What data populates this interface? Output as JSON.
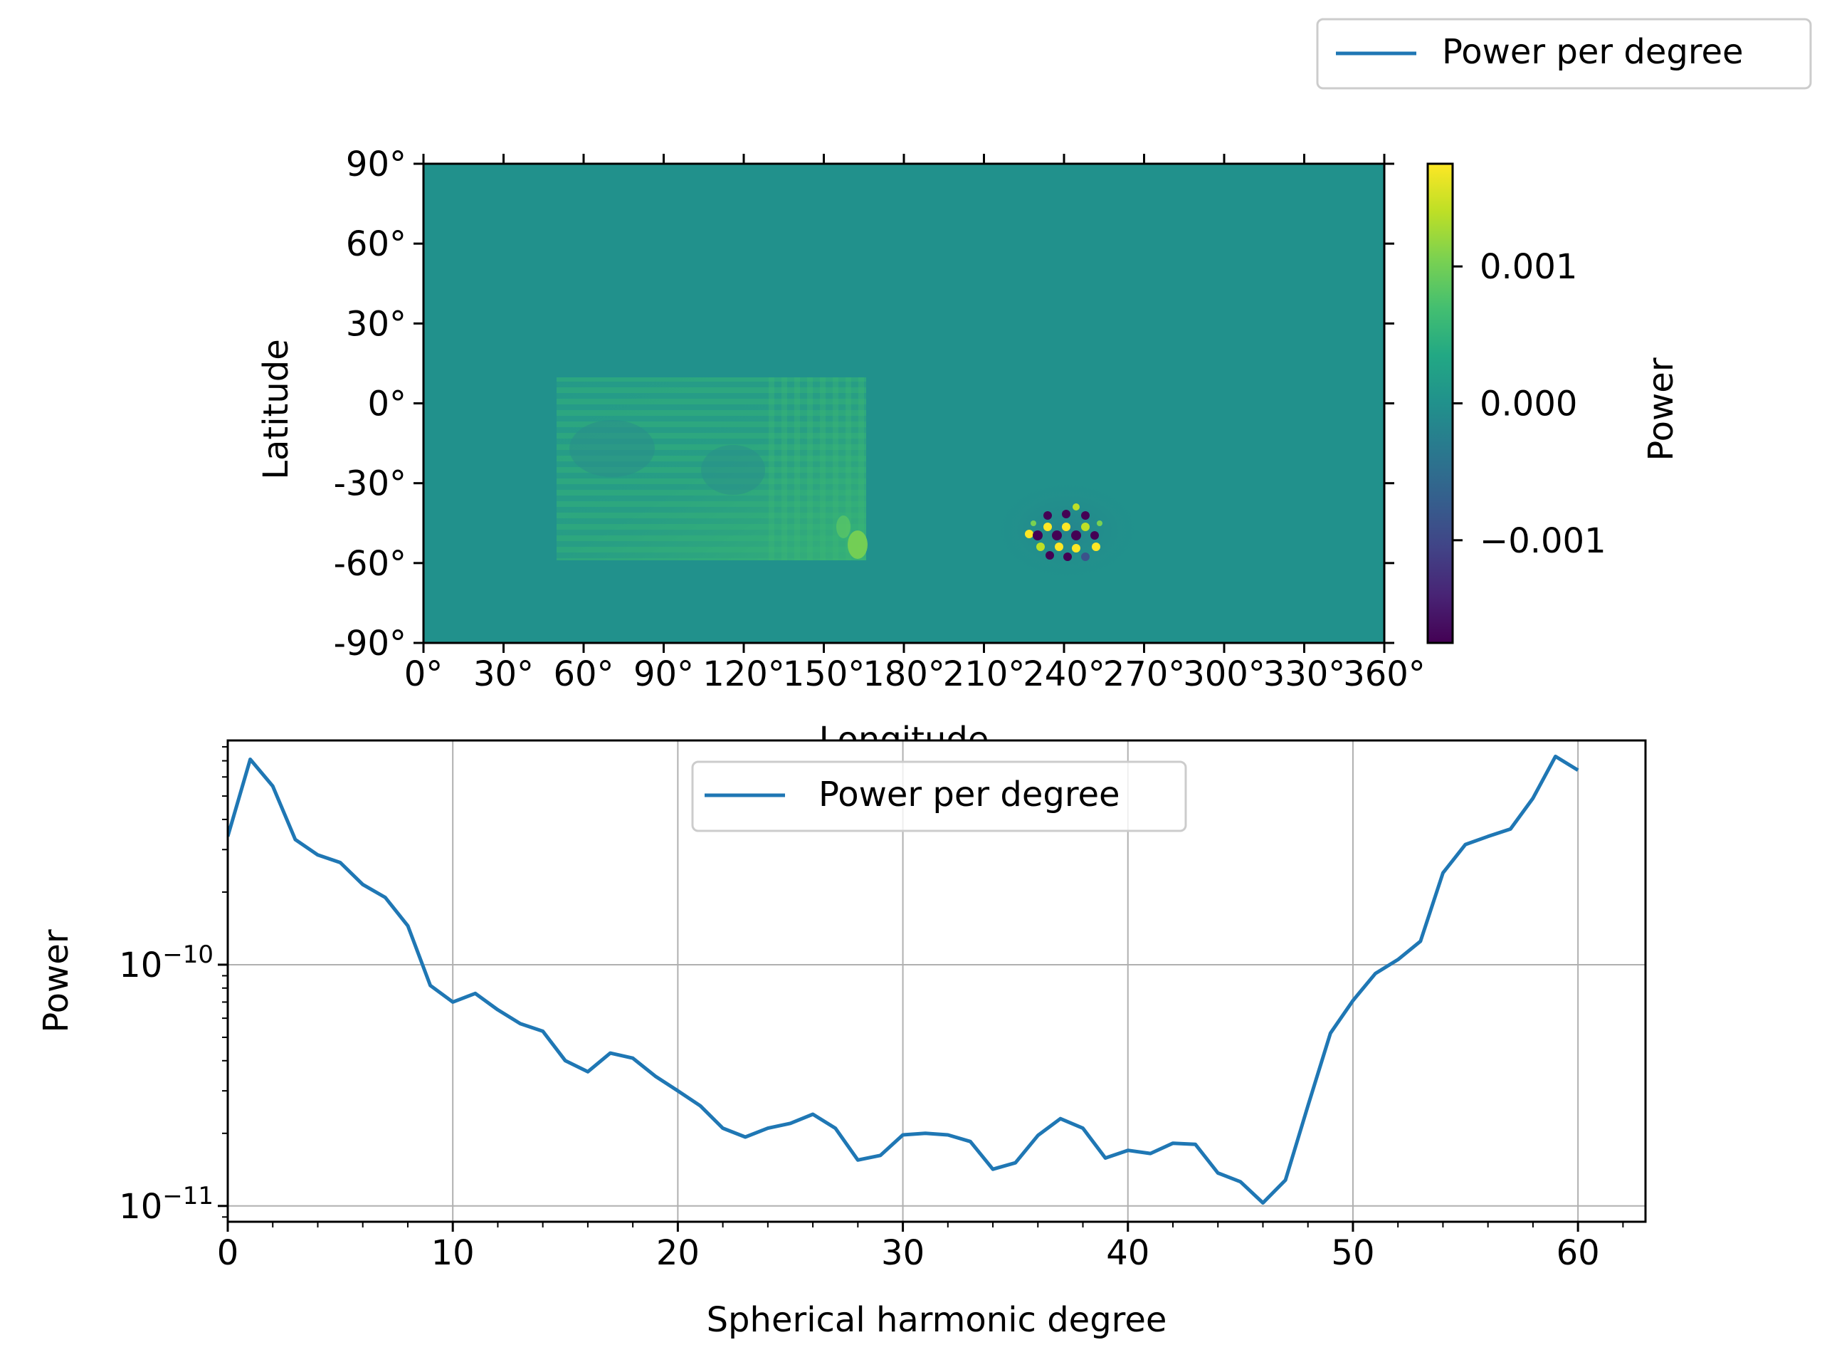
{
  "figure_legend": {
    "label": "Power per degree",
    "color": "#1f77b4"
  },
  "map": {
    "ylabel": "Latitude",
    "xlabel": "Longitude",
    "xticks": [
      "0°",
      "30°",
      "60°",
      "90°",
      "120°",
      "150°",
      "180°",
      "210°",
      "240°",
      "270°",
      "300°",
      "330°",
      "360°"
    ],
    "yticks": [
      "90°",
      "60°",
      "30°",
      "0°",
      "-30°",
      "-60°",
      "-90°"
    ],
    "colorbar": {
      "label": "Power",
      "ticks": [
        "0.001",
        "0.000",
        "−0.001"
      ],
      "colormap": "viridis",
      "range": [
        -0.00175,
        0.00175
      ]
    },
    "background_color": "#21918c",
    "features": [
      {
        "kind": "rectangular ringing region",
        "lon_range": [
          50,
          167
        ],
        "lat_range": [
          -58,
          10
        ]
      },
      {
        "kind": "oscillating spot",
        "lon_range": [
          225,
          255
        ],
        "lat_range": [
          -60,
          -37
        ]
      }
    ]
  },
  "chart_data": {
    "type": "line",
    "ylabel": "Power",
    "xlabel": "Spherical harmonic degree",
    "yscale": "log",
    "grid": true,
    "legend": {
      "label": "Power per degree",
      "placement": "upper center"
    },
    "xlim": [
      0,
      63
    ],
    "ylim": [
      8.6e-12,
      8.5e-10
    ],
    "xticks": [
      0,
      10,
      20,
      30,
      40,
      50,
      60
    ],
    "ytick_labels": [
      {
        "base": "10",
        "exp": "−10",
        "value": 1e-10
      },
      {
        "base": "10",
        "exp": "−11",
        "value": 1e-11
      }
    ],
    "series": [
      {
        "name": "Power per degree",
        "color": "#1f77b4",
        "x": [
          0,
          1,
          2,
          3,
          4,
          5,
          6,
          7,
          8,
          9,
          10,
          11,
          12,
          13,
          14,
          15,
          16,
          17,
          18,
          19,
          20,
          21,
          22,
          23,
          24,
          25,
          26,
          27,
          28,
          29,
          30,
          31,
          32,
          33,
          34,
          35,
          36,
          37,
          38,
          39,
          40,
          41,
          42,
          43,
          44,
          45,
          46,
          47,
          48,
          49,
          50,
          51,
          52,
          53,
          54,
          55,
          56,
          57,
          58,
          59,
          60
        ],
        "y": [
          3.4e-10,
          7.1e-10,
          5.5e-10,
          3.3e-10,
          2.85e-10,
          2.65e-10,
          2.15e-10,
          1.9e-10,
          1.45e-10,
          8.2e-11,
          7e-11,
          7.6e-11,
          6.5e-11,
          5.7e-11,
          5.3e-11,
          4e-11,
          3.6e-11,
          4.3e-11,
          4.1e-11,
          3.45e-11,
          3e-11,
          2.6e-11,
          2.1e-11,
          1.93e-11,
          2.1e-11,
          2.2e-11,
          2.4e-11,
          2.1e-11,
          1.55e-11,
          1.62e-11,
          1.97e-11,
          2e-11,
          1.97e-11,
          1.85e-11,
          1.42e-11,
          1.51e-11,
          1.96e-11,
          2.3e-11,
          2.1e-11,
          1.58e-11,
          1.7e-11,
          1.65e-11,
          1.82e-11,
          1.8e-11,
          1.37e-11,
          1.26e-11,
          1.03e-11,
          1.28e-11,
          2.6e-11,
          5.2e-11,
          7.1e-11,
          9.2e-11,
          1.05e-10,
          1.25e-10,
          2.4e-10,
          3.15e-10,
          3.4e-10,
          3.65e-10,
          4.9e-10,
          7.3e-10,
          6.4e-10
        ]
      }
    ]
  }
}
